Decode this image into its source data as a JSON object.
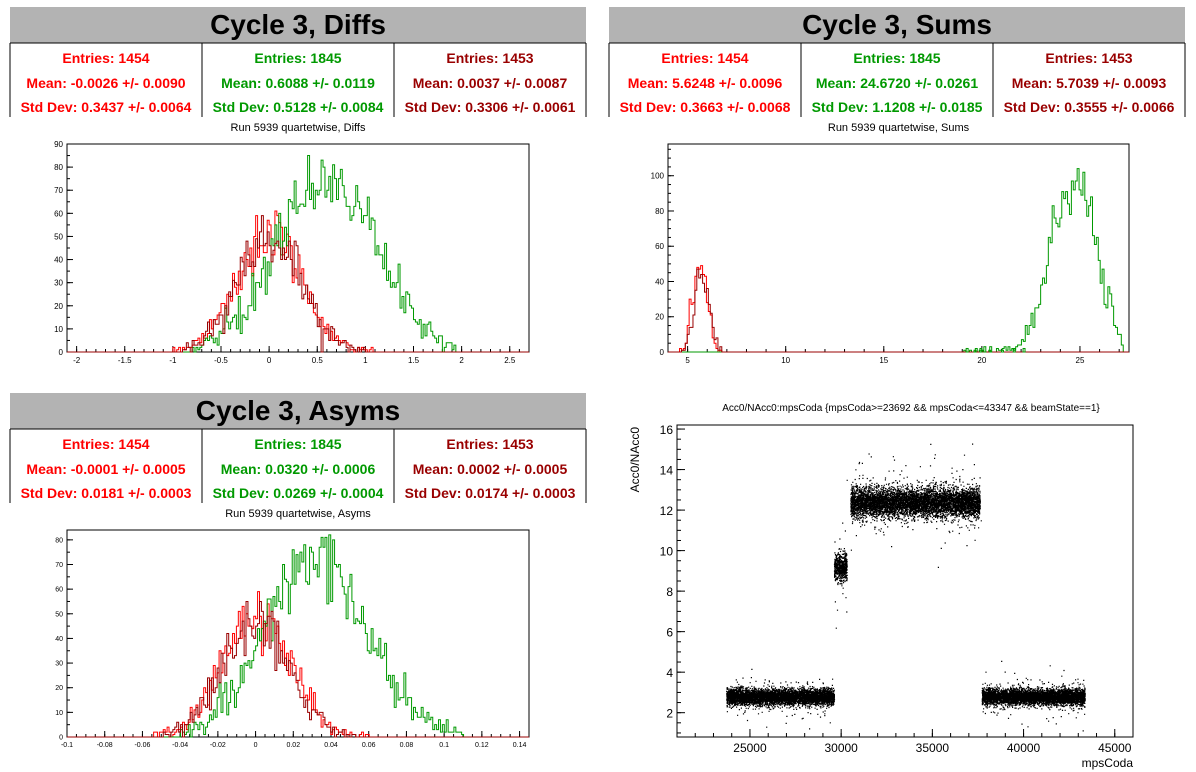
{
  "colors": {
    "red": "#ff0000",
    "green": "#009900",
    "darkred": "#990000",
    "black": "#000000",
    "title_bg": "#b3b3b3"
  },
  "panels": [
    {
      "title": "Cycle 3, Diffs",
      "subtitle": "Run 5939 quartetwise, Diffs",
      "stats": [
        {
          "color": "red",
          "entries": "Entries: 1454",
          "mean": "Mean: -0.0026 +/- 0.0090",
          "std": "Std Dev: 0.3437 +/- 0.0064"
        },
        {
          "color": "green",
          "entries": "Entries: 1845",
          "mean": "Mean: 0.6088 +/- 0.0119",
          "std": "Std Dev: 0.5128 +/- 0.0084"
        },
        {
          "color": "darkred",
          "entries": "Entries: 1453",
          "mean": "Mean: 0.0037 +/- 0.0087",
          "std": "Std Dev: 0.3306 +/- 0.0061"
        }
      ]
    },
    {
      "title": "Cycle 3, Sums",
      "subtitle": "Run 5939 quartetwise, Sums",
      "stats": [
        {
          "color": "red",
          "entries": "Entries: 1454",
          "mean": "Mean: 5.6248 +/- 0.0096",
          "std": "Std Dev: 0.3663 +/- 0.0068"
        },
        {
          "color": "green",
          "entries": "Entries: 1845",
          "mean": "Mean: 24.6720 +/- 0.0261",
          "std": "Std Dev: 1.1208 +/- 0.0185"
        },
        {
          "color": "darkred",
          "entries": "Entries: 1453",
          "mean": "Mean: 5.7039 +/- 0.0093",
          "std": "Std Dev: 0.3555 +/- 0.0066"
        }
      ]
    },
    {
      "title": "Cycle 3, Asyms",
      "subtitle": "Run 5939 quartetwise, Asyms",
      "stats": [
        {
          "color": "red",
          "entries": "Entries: 1454",
          "mean": "Mean: -0.0001 +/- 0.0005",
          "std": "Std Dev: 0.0181 +/- 0.0003"
        },
        {
          "color": "green",
          "entries": "Entries: 1845",
          "mean": "Mean: 0.0320 +/- 0.0006",
          "std": "Std Dev: 0.0269 +/- 0.0004"
        },
        {
          "color": "darkred",
          "entries": "Entries: 1453",
          "mean": "Mean: 0.0002 +/- 0.0005",
          "std": "Std Dev: 0.0174 +/- 0.0003"
        }
      ]
    },
    {
      "title": "",
      "subtitle": "Acc0/NAcc0:mpsCoda {mpsCoda>=23692 && mpsCoda<=43347 && beamState==1}",
      "stats": []
    }
  ],
  "chart_data": [
    {
      "type": "histogram",
      "title": "Run 5939 quartetwise, Diffs",
      "xlim": [
        -2.1,
        2.7
      ],
      "ylim": [
        0,
        90
      ],
      "xticks": [
        -2,
        -1.5,
        -1,
        -0.5,
        0,
        0.5,
        1,
        1.5,
        2,
        2.5
      ],
      "yticks": [
        0,
        10,
        20,
        30,
        40,
        50,
        60,
        70,
        80,
        90
      ],
      "series": [
        {
          "color": "red",
          "entries": 1454,
          "mean": -0.0026,
          "std": 0.3437,
          "x_range": [
            -1.0,
            1.1
          ]
        },
        {
          "color": "green",
          "entries": 1845,
          "mean": 0.6088,
          "std": 0.5128,
          "x_range": [
            -0.8,
            1.95
          ]
        },
        {
          "color": "darkred",
          "entries": 1453,
          "mean": 0.0037,
          "std": 0.3306,
          "x_range": [
            -0.9,
            1.0
          ]
        }
      ]
    },
    {
      "type": "histogram",
      "title": "Run 5939 quartetwise, Sums",
      "xlim": [
        4.0,
        27.5
      ],
      "ylim": [
        0,
        118
      ],
      "xticks": [
        5,
        10,
        15,
        20,
        25
      ],
      "yticks": [
        0,
        20,
        40,
        60,
        80,
        100
      ],
      "series": [
        {
          "color": "red",
          "entries": 1454,
          "mean": 5.6248,
          "std": 0.3663,
          "x_range": [
            4.6,
            6.7
          ]
        },
        {
          "color": "green",
          "entries": 1845,
          "mean": 24.672,
          "std": 1.1208,
          "x_range": [
            19.0,
            27.2
          ]
        },
        {
          "color": "darkred",
          "entries": 1453,
          "mean": 5.7039,
          "std": 0.3555,
          "x_range": [
            4.6,
            6.9
          ]
        }
      ]
    },
    {
      "type": "histogram",
      "title": "Run 5939 quartetwise, Asyms",
      "xlim": [
        -0.1,
        0.145
      ],
      "ylim": [
        0,
        84
      ],
      "xticks": [
        -0.1,
        -0.08,
        -0.06,
        -0.04,
        -0.02,
        0,
        0.02,
        0.04,
        0.06,
        0.08,
        0.1,
        0.12,
        0.14
      ],
      "yticks": [
        0,
        10,
        20,
        30,
        40,
        50,
        60,
        70,
        80
      ],
      "series": [
        {
          "color": "red",
          "entries": 1454,
          "mean": -0.0001,
          "std": 0.0181,
          "x_range": [
            -0.055,
            0.06
          ]
        },
        {
          "color": "green",
          "entries": 1845,
          "mean": 0.032,
          "std": 0.0269,
          "x_range": [
            -0.04,
            0.11
          ]
        },
        {
          "color": "darkred",
          "entries": 1453,
          "mean": 0.0002,
          "std": 0.0174,
          "x_range": [
            -0.05,
            0.055
          ]
        }
      ]
    },
    {
      "type": "scatter",
      "title": "Acc0/NAcc0:mpsCoda {mpsCoda>=23692 && mpsCoda<=43347 && beamState==1}",
      "xlabel": "mpsCoda",
      "ylabel": "Acc0/NAcc0",
      "xlim": [
        21000,
        46000
      ],
      "ylim": [
        0.8,
        16.2
      ],
      "xticks": [
        25000,
        30000,
        35000,
        40000,
        45000
      ],
      "yticks": [
        2,
        4,
        6,
        8,
        10,
        12,
        14,
        16
      ],
      "clusters": [
        {
          "x_range": [
            23692,
            29600
          ],
          "y_center": 2.8,
          "y_spread": 0.35
        },
        {
          "x_range": [
            29600,
            30300
          ],
          "y_center": 9.2,
          "y_spread": 0.6
        },
        {
          "x_range": [
            30500,
            37600
          ],
          "y_center": 12.4,
          "y_spread": 0.65
        },
        {
          "x_range": [
            37700,
            43347
          ],
          "y_center": 2.8,
          "y_spread": 0.35
        }
      ]
    }
  ]
}
